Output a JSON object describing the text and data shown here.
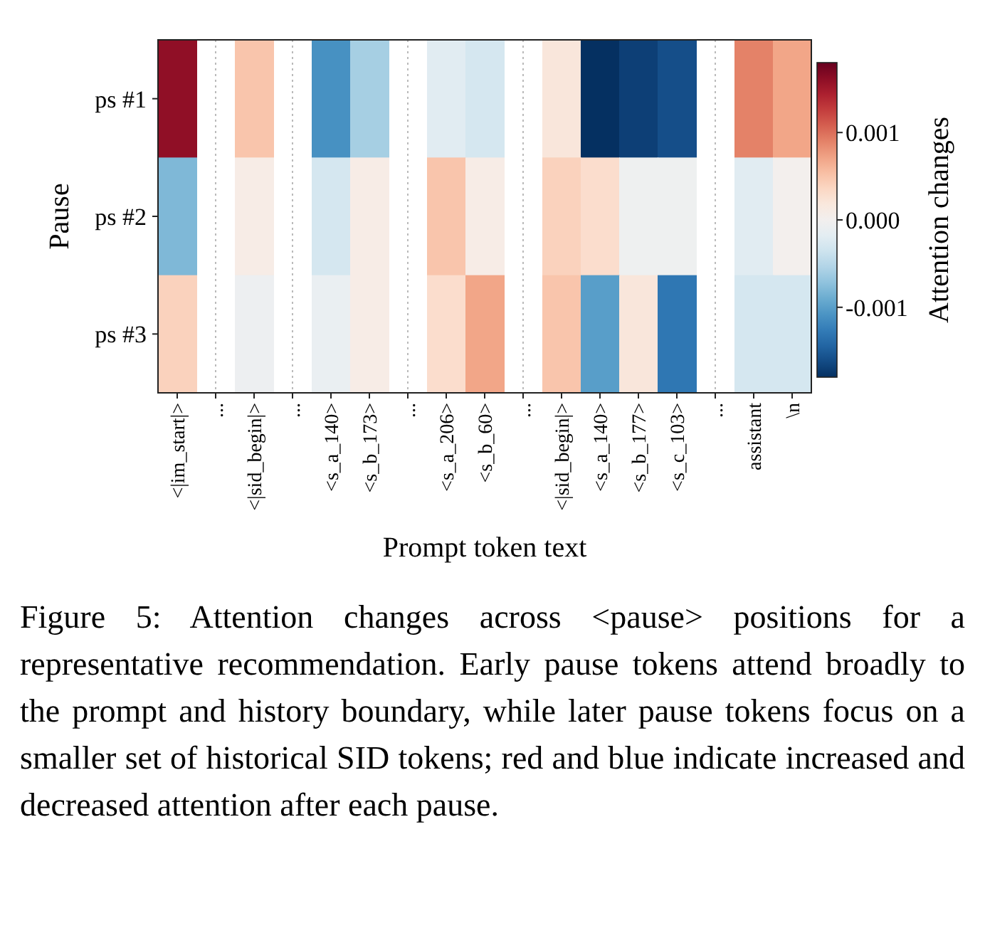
{
  "chart_data": {
    "type": "heatmap",
    "xlabel": "Prompt token text",
    "ylabel": "Pause",
    "clabel": "Attention changes",
    "categories": [
      "<|im_start|>",
      "...",
      "<|sid_begin|>",
      "...",
      "<s_a_140>",
      "<s_b_173>",
      "...",
      "<s_a_206>",
      "<s_b_60>",
      "...",
      "<|sid_begin|>",
      "<s_a_140>",
      "<s_b_177>",
      "<s_c_103>",
      "...",
      "assistant",
      "\\n"
    ],
    "y_categories": [
      "ps #1",
      "ps #2",
      "ps #3"
    ],
    "cells": [
      [
        0.0016,
        null,
        0.0005,
        null,
        -0.0011,
        -0.0006,
        null,
        -0.0002,
        -0.0003,
        null,
        0.0002,
        -0.0018,
        -0.0017,
        -0.0016,
        null,
        0.0009,
        0.0007
      ],
      [
        -0.0008,
        null,
        0.0001,
        null,
        -0.0003,
        0.0001,
        null,
        0.0005,
        0.0001,
        null,
        0.0004,
        0.0003,
        -5e-05,
        -5e-05,
        null,
        -0.0002,
        2e-05
      ],
      [
        0.0004,
        null,
        -7e-05,
        null,
        -0.0001,
        0.0001,
        null,
        0.0003,
        0.0007,
        null,
        0.0005,
        -0.001,
        0.0002,
        -0.0013,
        null,
        -0.0003,
        -0.0003
      ]
    ],
    "clim": [
      -0.0018,
      0.0018
    ],
    "grid": "x",
    "cticks": [
      {
        "value": -0.001,
        "label": "-0.001"
      },
      {
        "value": 0,
        "label": "0.000"
      },
      {
        "value": 0.001,
        "label": "0.001"
      }
    ],
    "annotations": [
      "Figure 5: Attention changes across <pause> positions for a representative recommendation. Early pause tokens attend broadly to the prompt and history boundary, while later pause tokens focus on a smaller set of historical SID tokens; red and blue indicate increased and decreased attention after each pause."
    ]
  }
}
